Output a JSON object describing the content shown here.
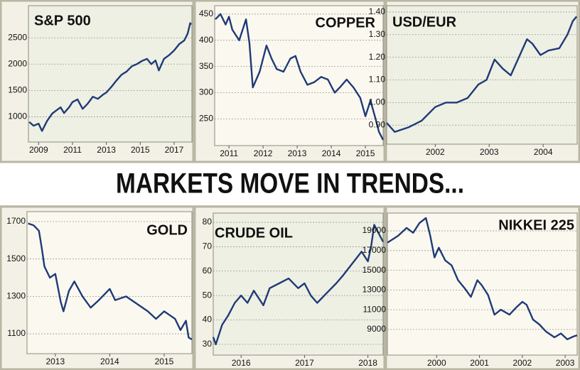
{
  "headline": "MARKETS MOVE IN TRENDS...",
  "chart_data": [
    {
      "type": "line",
      "title": "S&P 500",
      "color": "#1f3a78",
      "grid": true,
      "x": [
        2008.45,
        2008.7,
        2009.0,
        2009.2,
        2009.5,
        2009.8,
        2010.0,
        2010.3,
        2010.5,
        2010.8,
        2011.0,
        2011.3,
        2011.6,
        2011.9,
        2012.2,
        2012.5,
        2012.8,
        2013.0,
        2013.3,
        2013.6,
        2013.9,
        2014.2,
        2014.5,
        2014.8,
        2015.1,
        2015.4,
        2015.65,
        2015.9,
        2016.1,
        2016.4,
        2016.7,
        2017.0,
        2017.3,
        2017.6,
        2017.8,
        2017.95,
        2018.0
      ],
      "values": [
        900,
        830,
        870,
        730,
        920,
        1060,
        1110,
        1180,
        1070,
        1180,
        1280,
        1330,
        1150,
        1250,
        1380,
        1340,
        1420,
        1460,
        1570,
        1690,
        1800,
        1860,
        1960,
        2000,
        2060,
        2100,
        2000,
        2070,
        1880,
        2100,
        2170,
        2260,
        2380,
        2450,
        2580,
        2780,
        2750
      ],
      "xlim": [
        2008.4,
        2018.05
      ],
      "xticks": [
        2009,
        2011,
        2013,
        2015,
        2017
      ],
      "ylim": [
        520,
        3110
      ],
      "yticks": [
        1000,
        1500,
        2000,
        2500
      ]
    },
    {
      "type": "line",
      "title": "COPPER",
      "color": "#1f3a78",
      "grid": true,
      "x": [
        2010.6,
        2010.75,
        2010.9,
        2011.0,
        2011.1,
        2011.3,
        2011.5,
        2011.6,
        2011.7,
        2011.9,
        2012.1,
        2012.25,
        2012.4,
        2012.6,
        2012.8,
        2012.95,
        2013.1,
        2013.3,
        2013.5,
        2013.7,
        2013.9,
        2014.1,
        2014.25,
        2014.45,
        2014.65,
        2014.85,
        2015.0,
        2015.15,
        2015.3,
        2015.4,
        2015.52
      ],
      "values": [
        440,
        450,
        430,
        445,
        420,
        400,
        440,
        395,
        310,
        340,
        390,
        365,
        345,
        340,
        365,
        370,
        340,
        315,
        320,
        330,
        325,
        300,
        310,
        325,
        310,
        290,
        255,
        285,
        250,
        225,
        210
      ],
      "xlim": [
        2010.58,
        2015.52
      ],
      "xticks": [
        2011,
        2012,
        2013,
        2014,
        2015
      ],
      "ylim": [
        199,
        466
      ],
      "yticks": [
        250,
        300,
        350,
        400,
        450
      ]
    },
    {
      "type": "line",
      "title": "USD/EUR",
      "color": "#1f3a78",
      "grid": true,
      "x": [
        2001.1,
        2001.25,
        2001.5,
        2001.75,
        2002.0,
        2002.2,
        2002.4,
        2002.6,
        2002.8,
        2002.95,
        2003.1,
        2003.25,
        2003.4,
        2003.55,
        2003.7,
        2003.8,
        2003.95,
        2004.1,
        2004.3,
        2004.45,
        2004.55,
        2004.62
      ],
      "values": [
        0.91,
        0.87,
        0.89,
        0.92,
        0.98,
        1.0,
        1.0,
        1.02,
        1.08,
        1.1,
        1.19,
        1.15,
        1.12,
        1.2,
        1.28,
        1.26,
        1.21,
        1.23,
        1.24,
        1.3,
        1.36,
        1.38
      ],
      "xlim": [
        2001.1,
        2004.63
      ],
      "xticks": [
        2002,
        2003,
        2004
      ],
      "ylim": [
        0.816,
        1.428
      ],
      "yticks": [
        {
          "value": 0.9,
          "label": "0.90"
        },
        {
          "value": 1.0,
          "label": "1.00"
        },
        {
          "value": 1.1,
          "label": "1.10"
        },
        {
          "value": 1.2,
          "label": "1.20"
        },
        {
          "value": 1.3,
          "label": "1.30"
        },
        {
          "value": 1.4,
          "label": "1.40"
        }
      ]
    },
    {
      "type": "line",
      "title": "GOLD",
      "color": "#1f3a78",
      "grid": true,
      "x": [
        2012.5,
        2012.6,
        2012.7,
        2012.75,
        2012.8,
        2012.9,
        2013.0,
        2013.1,
        2013.15,
        2013.25,
        2013.35,
        2013.5,
        2013.65,
        2013.8,
        2014.0,
        2014.1,
        2014.3,
        2014.5,
        2014.7,
        2014.85,
        2015.0,
        2015.1,
        2015.2,
        2015.3,
        2015.4,
        2015.45,
        2015.51
      ],
      "values": [
        1690,
        1680,
        1650,
        1560,
        1460,
        1400,
        1420,
        1270,
        1220,
        1330,
        1380,
        1300,
        1240,
        1280,
        1340,
        1280,
        1300,
        1260,
        1220,
        1180,
        1220,
        1200,
        1180,
        1120,
        1170,
        1080,
        1070
      ],
      "xlim": [
        2012.48,
        2015.51
      ],
      "xticks": [
        2013,
        2014,
        2015
      ],
      "ylim": [
        994,
        1753
      ],
      "yticks": [
        1100,
        1300,
        1500,
        1700
      ]
    },
    {
      "type": "line",
      "title": "CRUDE OIL",
      "color": "#1f3a78",
      "grid": true,
      "x": [
        2015.56,
        2015.6,
        2015.7,
        2015.8,
        2015.9,
        2016.0,
        2016.1,
        2016.2,
        2016.35,
        2016.45,
        2016.6,
        2016.75,
        2016.9,
        2017.0,
        2017.1,
        2017.2,
        2017.35,
        2017.5,
        2017.6,
        2017.75,
        2017.9,
        2018.0,
        2018.05,
        2018.1,
        2018.2,
        2018.24
      ],
      "values": [
        33,
        30,
        38,
        42,
        47,
        50,
        47,
        52,
        46,
        53,
        55,
        57,
        53,
        55,
        50,
        47,
        51,
        55,
        58,
        63,
        68,
        64,
        70,
        79,
        74,
        72
      ],
      "xlim": [
        2015.56,
        2018.24
      ],
      "xticks": [
        2016,
        2017,
        2018
      ],
      "ylim": [
        25.6,
        83.8
      ],
      "yticks": [
        30,
        40,
        50,
        60,
        70,
        80
      ]
    },
    {
      "type": "line",
      "title": "NIKKEI 225",
      "color": "#1f3a78",
      "grid": true,
      "x": [
        1998.85,
        1999.1,
        1999.3,
        1999.45,
        1999.6,
        1999.75,
        1999.85,
        1999.95,
        2000.05,
        2000.2,
        2000.35,
        2000.5,
        2000.65,
        2000.8,
        2000.95,
        2001.05,
        2001.2,
        2001.35,
        2001.5,
        2001.7,
        2001.85,
        2002.0,
        2002.1,
        2002.25,
        2002.4,
        2002.55,
        2002.75,
        2002.9,
        2003.05,
        2003.2,
        2003.28
      ],
      "values": [
        17800,
        18500,
        19300,
        18800,
        19800,
        20300,
        18500,
        16300,
        17300,
        16000,
        15500,
        14000,
        13200,
        12300,
        14000,
        13500,
        12500,
        10500,
        11000,
        10500,
        11200,
        11800,
        11500,
        10000,
        9500,
        8800,
        8200,
        8600,
        8000,
        8300,
        8400
      ],
      "xlim": [
        1998.85,
        2003.28
      ],
      "xticks": [
        2000,
        2001,
        2002,
        2003
      ],
      "ylim": [
        6400,
        20805
      ],
      "yticks": [
        9000,
        11000,
        13000,
        15000,
        17000,
        19000
      ]
    }
  ]
}
